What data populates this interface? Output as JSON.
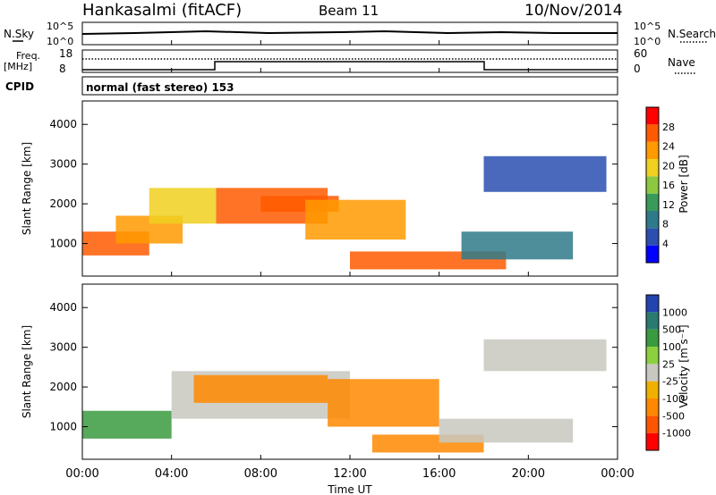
{
  "header": {
    "title": "Hankasalmi (fitACF)",
    "beam": "Beam 11",
    "date": "10/Nov/2014"
  },
  "strip": {
    "nsky_label": "N.Sky",
    "nsearch_label": "N.Search",
    "nsky_top": "10^5",
    "nsky_bottom": "10^0",
    "nsearch_top": "10^5",
    "nsearch_bottom": "10^0",
    "freq_label": "Freq.",
    "freq_units": "[MHz]",
    "freq_top": "18",
    "freq_bottom": "8",
    "nave_label": "Nave",
    "nave_top": "60",
    "nave_bottom": "0",
    "cpid_label": "CPID",
    "cpid_text": "normal (fast stereo) 153"
  },
  "colors": {
    "power": [
      "#0000ff",
      "#2a4fb0",
      "#2f7a8a",
      "#3a9a5a",
      "#8cc840",
      "#f0d020",
      "#ff9a00",
      "#ff5a00",
      "#ff0000"
    ],
    "velocity": [
      "#2244b0",
      "#2a7a70",
      "#3a9a40",
      "#8cd040",
      "#c8c8c0",
      "#f0b000",
      "#ff8800",
      "#ff5500",
      "#ff0000"
    ]
  },
  "chart_data": [
    {
      "type": "heatmap",
      "name": "power",
      "ylabel": "Slant Range [km]",
      "yticks": [
        "1000",
        "2000",
        "3000",
        "4000"
      ],
      "ylim": [
        180,
        4590
      ],
      "xlim": [
        0,
        24
      ],
      "colorbar_label": "Power [dB]",
      "colorbar_ticks": [
        "4",
        "8",
        "12",
        "16",
        "20",
        "24",
        "28"
      ],
      "clim": [
        0,
        32
      ],
      "regions": [
        {
          "t": [
            0.0,
            3.0
          ],
          "r": [
            700,
            1300
          ],
          "value": 28
        },
        {
          "t": [
            1.5,
            4.5
          ],
          "r": [
            1000,
            1700
          ],
          "value": 24
        },
        {
          "t": [
            3.0,
            6.0
          ],
          "r": [
            1500,
            2400
          ],
          "value": 20
        },
        {
          "t": [
            6.0,
            11.0
          ],
          "r": [
            1500,
            2400
          ],
          "value": 26
        },
        {
          "t": [
            8.0,
            11.5
          ],
          "r": [
            1800,
            2200
          ],
          "value": 28
        },
        {
          "t": [
            10.0,
            14.5
          ],
          "r": [
            1100,
            2100
          ],
          "value": 24
        },
        {
          "t": [
            12.0,
            19.0
          ],
          "r": [
            350,
            800
          ],
          "value": 28
        },
        {
          "t": [
            17.0,
            22.0
          ],
          "r": [
            600,
            1300
          ],
          "value": 10
        },
        {
          "t": [
            18.0,
            23.5
          ],
          "r": [
            2300,
            3200
          ],
          "value": 6
        }
      ]
    },
    {
      "type": "heatmap",
      "name": "velocity",
      "ylabel": "Slant Range [km]",
      "yticks": [
        "1000",
        "2000",
        "3000",
        "4000"
      ],
      "ylim": [
        180,
        4590
      ],
      "xlim": [
        0,
        24
      ],
      "xlabel": "Time UT",
      "xticks": [
        "00:00",
        "04:00",
        "08:00",
        "12:00",
        "16:00",
        "20:00",
        "00:00"
      ],
      "colorbar_label": "Velocity [m s⁻¹]",
      "colorbar_ticks": [
        "1000",
        "500",
        "100",
        "25",
        "-25",
        "-100",
        "-500",
        "-1000"
      ],
      "regions": [
        {
          "t": [
            0.0,
            4.0
          ],
          "r": [
            700,
            1400
          ],
          "value": 100
        },
        {
          "t": [
            4.0,
            12.0
          ],
          "r": [
            1200,
            2400
          ],
          "value": 0
        },
        {
          "t": [
            5.0,
            11.0
          ],
          "r": [
            1600,
            2300
          ],
          "value": -300
        },
        {
          "t": [
            11.0,
            16.0
          ],
          "r": [
            1000,
            2200
          ],
          "value": -500
        },
        {
          "t": [
            13.0,
            18.0
          ],
          "r": [
            350,
            800
          ],
          "value": -400
        },
        {
          "t": [
            16.0,
            22.0
          ],
          "r": [
            600,
            1200
          ],
          "value": 0
        },
        {
          "t": [
            18.0,
            23.5
          ],
          "r": [
            2400,
            3200
          ],
          "value": 0
        }
      ]
    }
  ]
}
